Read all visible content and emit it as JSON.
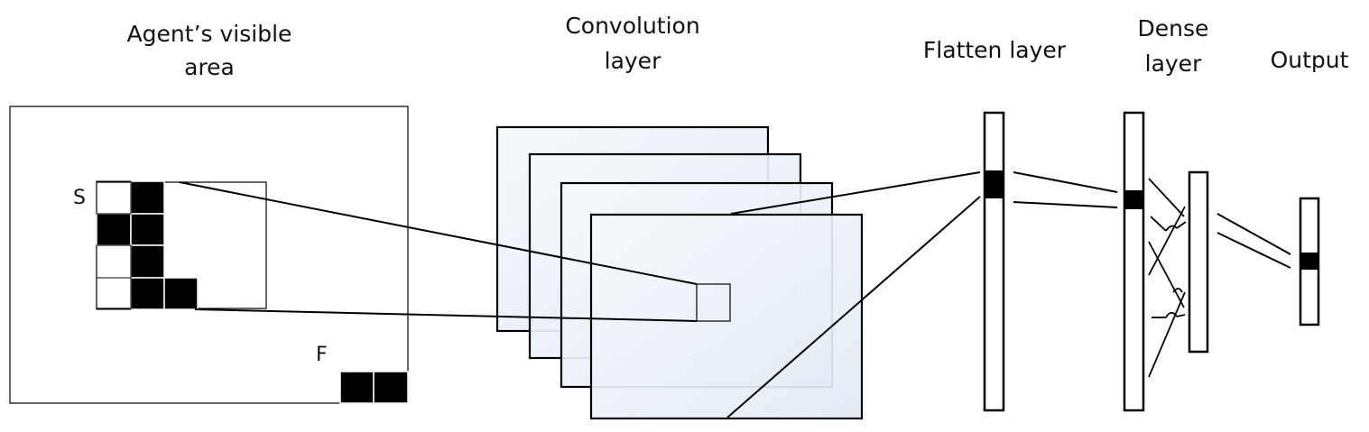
{
  "labels": {
    "visible_area_line1": "Agent’s visible",
    "visible_area_line2": "area",
    "convolution_line1": "Convolution",
    "convolution_line2": "layer",
    "flatten": "Flatten layer",
    "dense_line1": "Dense",
    "dense_line2": "layer",
    "output": "Output",
    "start": "S",
    "finish": "F"
  },
  "colors": {
    "line": "#000000",
    "filled_cell": "#000000",
    "feature_map_fill": "#eaf1f8",
    "background": "#ffffff"
  }
}
